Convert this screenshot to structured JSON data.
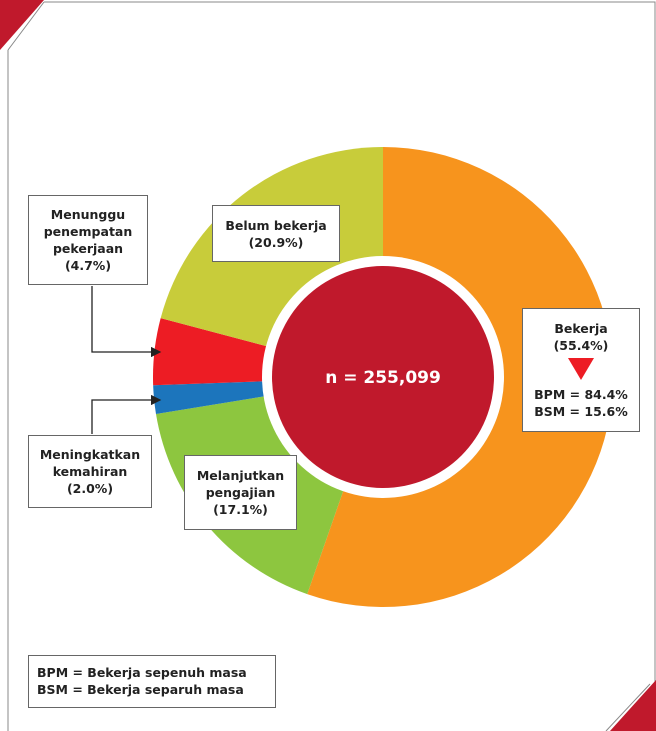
{
  "chart_data": {
    "type": "donut",
    "categories": [
      "Bekerja",
      "Melanjutkan pengajian",
      "Meningkatkan kemahiran",
      "Menunggu penempatan pekerjaan",
      "Belum bekerja"
    ],
    "values": [
      55.4,
      17.1,
      2.0,
      4.7,
      20.9
    ],
    "value_labels": [
      "(55.4%)",
      "(17.1%)",
      "(2.0%)",
      "(4.7%)",
      "(20.9%)"
    ],
    "colors": [
      "#f7941d",
      "#8dc63f",
      "#1c75bc",
      "#ed1c24",
      "#c8cc3a"
    ],
    "center_label": "n = 255,099",
    "annotations": [
      "BPM = 84.4%",
      "BSM = 15.6%"
    ],
    "notes": [
      "BPM = Bekerja sepenuh masa",
      "BSM = Bekerja separuh masa"
    ]
  }
}
